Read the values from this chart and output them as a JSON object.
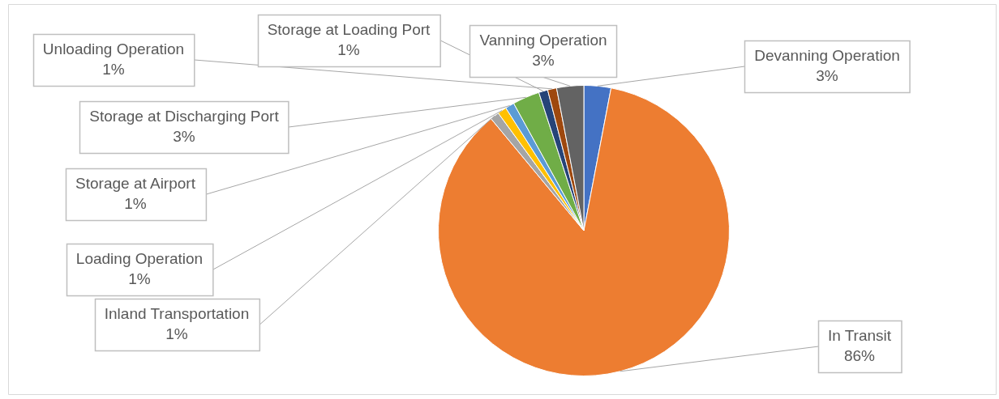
{
  "chart_data": {
    "type": "pie",
    "categories": [
      "Devanning Operation",
      "In Transit",
      "Inland Transportation",
      "Loading Operation",
      "Storage at Airport",
      "Storage at Discharging Port",
      "Storage at Loading Port",
      "Unloading Operation",
      "Vanning Operation"
    ],
    "values": [
      3,
      86,
      1,
      1,
      1,
      3,
      1,
      1,
      3
    ],
    "value_labels": [
      "3%",
      "86%",
      "1%",
      "1%",
      "1%",
      "3%",
      "1%",
      "1%",
      "3%"
    ],
    "colors": [
      "#4472c4",
      "#ed7d31",
      "#a5a5a5",
      "#ffc000",
      "#5b9bd5",
      "#70ad47",
      "#264478",
      "#9e480e",
      "#636363"
    ]
  }
}
